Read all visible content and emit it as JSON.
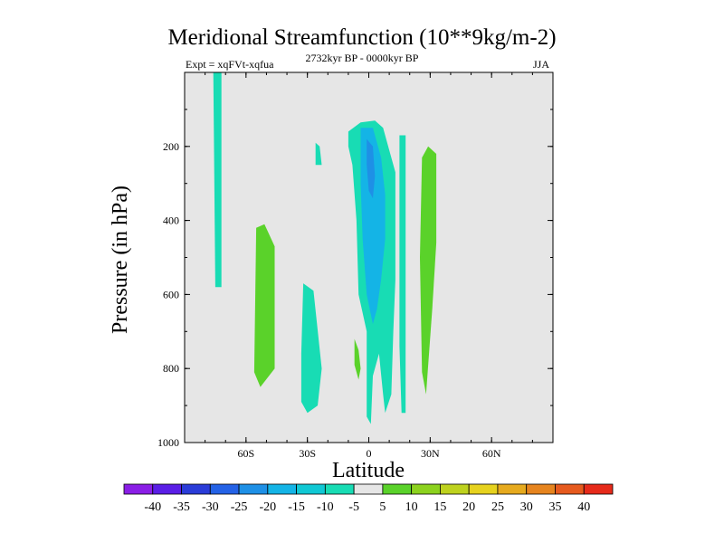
{
  "chart_data": {
    "type": "contour",
    "title": "Meridional Streamfunction (10**9kg/m-2)",
    "subtitle_left": "Expt = xqFVt-xqfua",
    "subtitle_center": "2732kyr BP - 0000kyr BP",
    "subtitle_right": "JJA",
    "xlabel": "Latitude",
    "ylabel": "Pressure (in hPa)",
    "xlim": [
      -90,
      90
    ],
    "ylim": [
      1000,
      0
    ],
    "x_ticks": [
      {
        "value": -60,
        "label": "60S"
      },
      {
        "value": -30,
        "label": "30S"
      },
      {
        "value": 0,
        "label": "0"
      },
      {
        "value": 30,
        "label": "30N"
      },
      {
        "value": 60,
        "label": "60N"
      }
    ],
    "y_ticks": [
      {
        "value": 200,
        "label": "200"
      },
      {
        "value": 400,
        "label": "400"
      },
      {
        "value": 600,
        "label": "600"
      },
      {
        "value": 800,
        "label": "800"
      },
      {
        "value": 1000,
        "label": "1000"
      }
    ],
    "background_color": "#e6e6e6",
    "colorbar": {
      "levels": [
        "-40",
        "-35",
        "-30",
        "-25",
        "-20",
        "-15",
        "-10",
        "-5",
        "5",
        "10",
        "15",
        "20",
        "25",
        "30",
        "35",
        "40"
      ],
      "colors": [
        "#8a1ee6",
        "#5a1ee6",
        "#2a3cd8",
        "#2462e6",
        "#1e90e6",
        "#14b4e6",
        "#10c8d4",
        "#18dcb4",
        "#e6e6e6",
        "#5ad22a",
        "#8cd21e",
        "#bed21e",
        "#e6d21e",
        "#e6aa1e",
        "#e6841e",
        "#e65a1e",
        "#e62a1a"
      ]
    },
    "regions": [
      {
        "name": "band-70S-upper",
        "value": -5,
        "color": "#18dcb4",
        "points": [
          [
            -76,
            0
          ],
          [
            -72,
            0
          ],
          [
            -72,
            580
          ],
          [
            -75,
            580
          ]
        ]
      },
      {
        "name": "band-55S-mid",
        "value": 5,
        "color": "#5ad22a",
        "points": [
          [
            -55,
            420
          ],
          [
            -51,
            410
          ],
          [
            -46,
            470
          ],
          [
            -46,
            800
          ],
          [
            -53,
            850
          ],
          [
            -56,
            810
          ]
        ]
      },
      {
        "name": "band-30S-lower",
        "value": -5,
        "color": "#18dcb4",
        "points": [
          [
            -32,
            570
          ],
          [
            -27,
            590
          ],
          [
            -23,
            800
          ],
          [
            -25,
            900
          ],
          [
            -30,
            920
          ],
          [
            -33,
            890
          ],
          [
            -33,
            760
          ]
        ]
      },
      {
        "name": "blob-25S-200",
        "value": -5,
        "color": "#18dcb4",
        "points": [
          [
            -26,
            190
          ],
          [
            -24,
            200
          ],
          [
            -23,
            250
          ],
          [
            -26,
            250
          ]
        ]
      },
      {
        "name": "blob-5S-780",
        "value": 5,
        "color": "#5ad22a",
        "points": [
          [
            -7,
            720
          ],
          [
            -5,
            750
          ],
          [
            -4,
            800
          ],
          [
            -5,
            830
          ],
          [
            -7,
            790
          ]
        ]
      },
      {
        "name": "core-outer-eq",
        "value": -5,
        "color": "#18dcb4",
        "points": [
          [
            -10,
            160
          ],
          [
            -4,
            135
          ],
          [
            3,
            130
          ],
          [
            7,
            150
          ],
          [
            10,
            210
          ],
          [
            13,
            270
          ],
          [
            13,
            560
          ],
          [
            12,
            700
          ],
          [
            11,
            870
          ],
          [
            8,
            920
          ],
          [
            7,
            870
          ],
          [
            5,
            760
          ],
          [
            2,
            820
          ],
          [
            1,
            950
          ],
          [
            -1,
            930
          ],
          [
            -1,
            700
          ],
          [
            -5,
            600
          ],
          [
            -6,
            400
          ],
          [
            -8,
            250
          ],
          [
            -10,
            200
          ]
        ]
      },
      {
        "name": "band-17N-mid",
        "value": -5,
        "color": "#18dcb4",
        "points": [
          [
            15,
            170
          ],
          [
            18,
            170
          ],
          [
            18,
            720
          ],
          [
            18,
            920
          ],
          [
            16,
            920
          ],
          [
            15,
            740
          ]
        ]
      },
      {
        "name": "core-mid-eq",
        "value": -10,
        "color": "#14b4e6",
        "points": [
          [
            -4,
            150
          ],
          [
            2,
            150
          ],
          [
            6,
            230
          ],
          [
            8,
            330
          ],
          [
            8,
            450
          ],
          [
            6,
            560
          ],
          [
            4,
            640
          ],
          [
            2,
            680
          ],
          [
            -1,
            600
          ],
          [
            -3,
            450
          ],
          [
            -4,
            300
          ]
        ]
      },
      {
        "name": "core-inner-eq",
        "value": -15,
        "color": "#1e90e6",
        "points": [
          [
            -1,
            180
          ],
          [
            2,
            200
          ],
          [
            3,
            280
          ],
          [
            2,
            340
          ],
          [
            0,
            320
          ],
          [
            -1,
            250
          ]
        ]
      },
      {
        "name": "band-29N-mid",
        "value": 5,
        "color": "#5ad22a",
        "points": [
          [
            26,
            230
          ],
          [
            29,
            200
          ],
          [
            33,
            220
          ],
          [
            33,
            460
          ],
          [
            31,
            640
          ],
          [
            28,
            870
          ],
          [
            26,
            810
          ],
          [
            25,
            500
          ]
        ]
      }
    ]
  }
}
